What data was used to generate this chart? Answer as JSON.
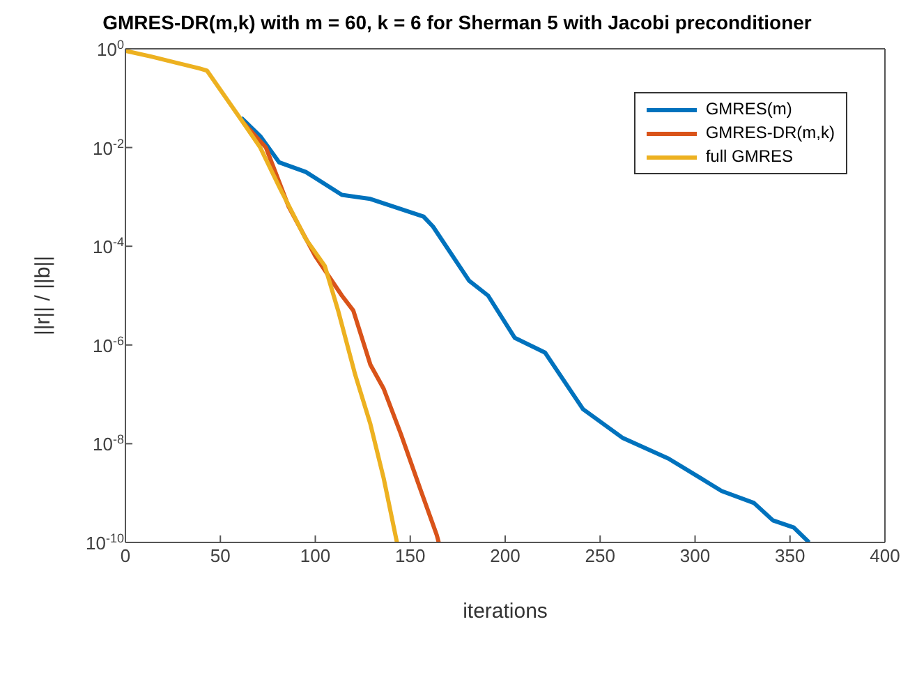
{
  "chart_data": {
    "type": "line",
    "title": "GMRES-DR(m,k) with m = 60, k = 6 for Sherman 5 with Jacobi preconditioner",
    "xlabel": "iterations",
    "ylabel": "||r|| / ||b||",
    "log": "y",
    "xlim": [
      0,
      400
    ],
    "xticks": [
      0,
      50,
      100,
      150,
      200,
      250,
      300,
      350,
      400
    ],
    "ylim": [
      1e-10,
      1
    ],
    "yticks": [
      {
        "value": 1,
        "label": "10$^{0}$"
      },
      {
        "value": 0.01,
        "label": "10$^{-2}$"
      },
      {
        "value": 0.0001,
        "label": "10$^{-4}$"
      },
      {
        "value": 1e-06,
        "label": "10$^{-6}$"
      },
      {
        "value": 1e-08,
        "label": "10$^{-8}$"
      },
      {
        "value": 1e-10,
        "label": "10$^{-10}$"
      }
    ],
    "legend": "top right",
    "marker": "none",
    "line_style": "solid",
    "series": [
      {
        "name": "GMRES(m)",
        "color": "#0072bd",
        "x": [
          61,
          71,
          81,
          95,
          114,
          129,
          157,
          162,
          181,
          191,
          205,
          221,
          241,
          262,
          286,
          303,
          314,
          331,
          341,
          352,
          359,
          360
        ],
        "values": [
          0.04,
          0.017,
          0.005,
          0.0032,
          0.0011,
          0.00091,
          0.0004,
          0.00025,
          2e-05,
          1e-05,
          1.4e-06,
          7e-07,
          5e-08,
          1.3e-08,
          5e-09,
          2e-09,
          1.1e-09,
          6.3e-10,
          2.8e-10,
          2e-10,
          1.1e-10,
          1e-10
        ]
      },
      {
        "name": "GMRES-DR(m,k)",
        "color": "#d95319",
        "x": [
          62,
          74,
          86,
          100,
          114,
          120,
          129,
          136,
          145,
          155,
          164,
          165
        ],
        "values": [
          0.032,
          0.01,
          0.00063,
          6.3e-05,
          1e-05,
          5e-06,
          4e-07,
          1.3e-07,
          1.6e-08,
          1.3e-09,
          1.4e-10,
          1e-10
        ]
      },
      {
        "name": "full GMRES",
        "color": "#edb120",
        "x": [
          0,
          14,
          39,
          43,
          62,
          71,
          81,
          95,
          105,
          112,
          121,
          129,
          136,
          143
        ],
        "values": [
          0.91,
          0.69,
          0.4,
          0.36,
          0.032,
          0.01,
          0.0016,
          0.00014,
          4e-05,
          5e-06,
          2.5e-07,
          2.5e-08,
          2e-09,
          1e-10
        ]
      }
    ]
  }
}
